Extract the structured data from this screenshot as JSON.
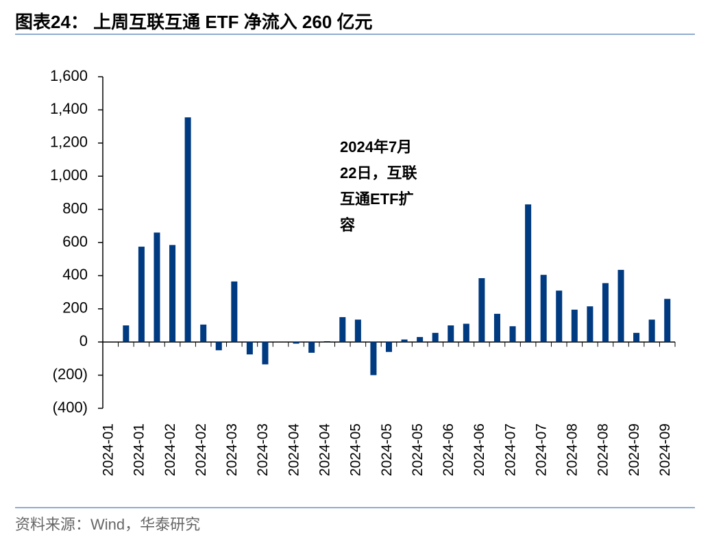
{
  "chart_data": {
    "type": "bar",
    "title": "图表24：  上周互联互通 ETF 净流入 260 亿元",
    "annotation": [
      "2024年7月",
      "22日，互联",
      "互通ETF扩",
      "容"
    ],
    "source": "资料来源：Wind，华泰研究",
    "categories": [
      "2024-01",
      null,
      "2024-01",
      null,
      "2024-02",
      null,
      "2024-02",
      null,
      "2024-03",
      null,
      "2024-03",
      null,
      "2024-04",
      null,
      "2024-04",
      null,
      "2024-05",
      null,
      "2024-05",
      null,
      "2024-05",
      null,
      "2024-06",
      null,
      "2024-06",
      null,
      "2024-07",
      null,
      "2024-07",
      null,
      "2024-08",
      null,
      "2024-08",
      null,
      "2024-09",
      null,
      "2024-09"
    ],
    "values": [
      0,
      100,
      575,
      660,
      585,
      1355,
      105,
      -50,
      365,
      -75,
      -135,
      0,
      -10,
      -65,
      5,
      150,
      135,
      -200,
      -60,
      15,
      30,
      55,
      100,
      110,
      385,
      170,
      95,
      830,
      405,
      310,
      195,
      215,
      355,
      435,
      55,
      135,
      260
    ],
    "color": "#003a80",
    "ylim": [
      -400,
      1600
    ],
    "yticks": [
      {
        "value": -400,
        "label": "(400)"
      },
      {
        "value": -200,
        "label": "(200)"
      },
      0,
      200,
      400,
      600,
      800,
      {
        "value": 1000,
        "label": "1,000"
      },
      {
        "value": 1200,
        "label": "1,200"
      },
      {
        "value": 1400,
        "label": "1,400"
      },
      {
        "value": 1600,
        "label": "1,600"
      }
    ]
  }
}
